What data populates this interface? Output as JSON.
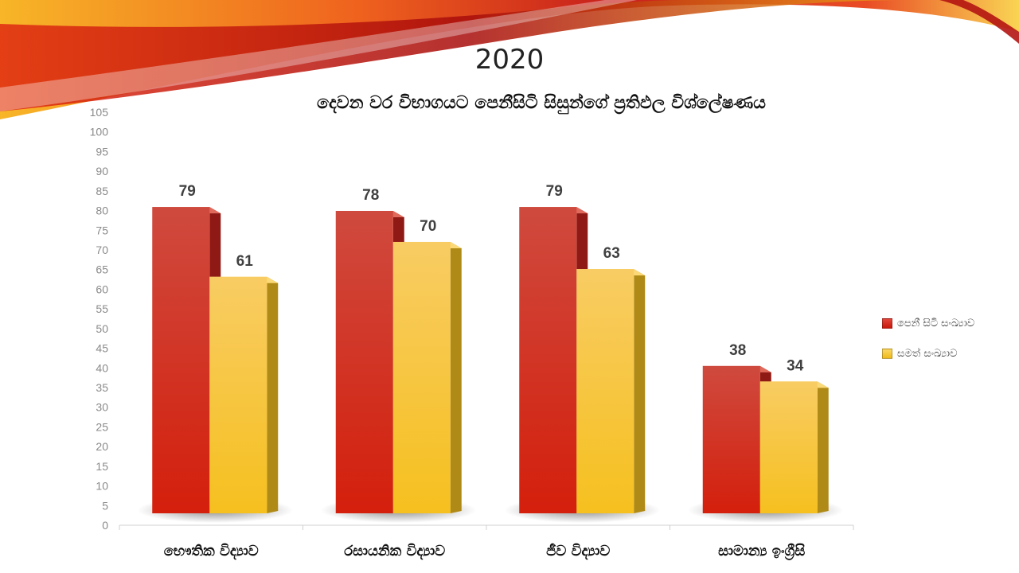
{
  "slide": {
    "title": "2020",
    "subtitle": "දෙවන වර විභාගයට පෙනීසිටි සිසුන්ගේ ප්‍රතිඵල විශ්ලේෂණය"
  },
  "colors": {
    "series1": "#d0221a",
    "series2": "#f5c22e",
    "series1_dark": "#8f1a15",
    "series2_dark": "#b08a16"
  },
  "chart_data": {
    "type": "bar",
    "categories": [
      "භෞතික විද්‍යාව",
      "රසායනික විද්‍යාව",
      "ජීව විද්‍යාව",
      "සාමාන්‍ය ඉංග්‍රීසි"
    ],
    "series": [
      {
        "name": "පෙනී සිටි සංඛ්‍යාව",
        "values": [
          79,
          78,
          79,
          38
        ]
      },
      {
        "name": "සමත් සංඛ්‍යාව",
        "values": [
          61,
          70,
          63,
          34
        ]
      }
    ],
    "ylim": [
      0,
      105
    ],
    "yticks": [
      0,
      5,
      10,
      15,
      20,
      25,
      30,
      35,
      40,
      45,
      50,
      55,
      60,
      65,
      70,
      75,
      80,
      85,
      90,
      95,
      100,
      105
    ],
    "legend_position": "right",
    "grid": false
  }
}
